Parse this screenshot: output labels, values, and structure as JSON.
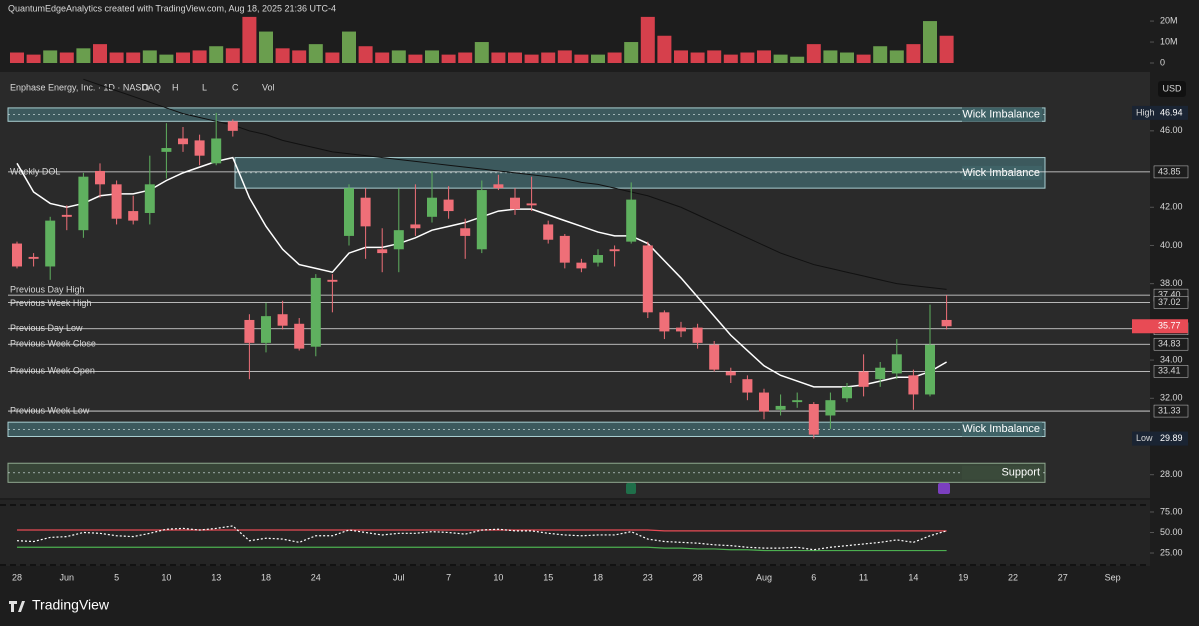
{
  "header": {
    "credit": "QuantumEdgeAnalytics created with TradingView.com, Aug 18, 2025 21:36 UTC-4",
    "currency": "USD",
    "brand": "TradingView"
  },
  "chart_data": {
    "type": "candlestick",
    "title": "Enphase Energy, Inc. · 1D · NASDAQ",
    "ohlc_labels": [
      "O",
      "H",
      "L",
      "C",
      "Vol"
    ],
    "up_color": "#5fb05f",
    "down_color": "#ef6f78",
    "open": [
      40.1,
      39.4,
      38.9,
      41.6,
      40.8,
      43.9,
      43.2,
      41.8,
      41.7,
      44.9,
      45.6,
      45.5,
      44.3,
      46.5,
      36.1,
      34.9,
      36.4,
      35.9,
      34.7,
      38.2,
      40.5,
      42.5,
      39.8,
      39.8,
      41.1,
      41.5,
      42.4,
      40.9,
      39.8,
      43.2,
      42.5,
      42.2,
      41.1,
      40.5,
      39.1,
      39.1,
      39.8,
      40.2,
      40.0,
      36.5,
      35.7,
      35.7,
      34.8,
      33.4,
      33.0,
      32.3,
      31.4,
      31.8,
      31.7,
      31.1,
      32.0,
      33.4,
      33.0,
      33.3,
      33.2,
      32.2,
      36.1
    ],
    "high": [
      40.2,
      39.6,
      41.5,
      42.1,
      43.8,
      44.3,
      43.4,
      42.6,
      44.7,
      46.4,
      46.2,
      45.8,
      46.94,
      46.6,
      36.4,
      37.0,
      37.1,
      36.2,
      38.5,
      38.5,
      43.2,
      43.0,
      40.9,
      43.0,
      43.2,
      43.9,
      43.1,
      41.4,
      43.4,
      43.7,
      43.0,
      43.6,
      41.3,
      40.6,
      39.3,
      39.8,
      40.0,
      43.3,
      40.2,
      36.6,
      36.0,
      35.9,
      35.0,
      33.6,
      33.2,
      32.5,
      32.2,
      32.3,
      31.8,
      32.3,
      32.8,
      34.3,
      33.9,
      35.1,
      33.5,
      36.9,
      37.4
    ],
    "low": [
      38.8,
      38.9,
      38.2,
      40.8,
      40.4,
      42.5,
      41.1,
      41.1,
      41.1,
      43.5,
      44.9,
      44.2,
      44.2,
      45.7,
      33.0,
      34.4,
      35.6,
      34.5,
      34.2,
      36.5,
      40.0,
      39.3,
      38.6,
      38.6,
      40.5,
      41.2,
      41.4,
      39.3,
      39.6,
      42.9,
      41.6,
      41.8,
      40.1,
      38.8,
      38.6,
      38.9,
      38.9,
      40.1,
      36.2,
      35.1,
      35.2,
      34.6,
      33.4,
      32.8,
      31.9,
      30.9,
      31.1,
      31.5,
      29.89,
      30.4,
      31.8,
      32.1,
      32.6,
      33.0,
      31.4,
      32.1,
      35.6
    ],
    "close": [
      38.9,
      39.3,
      41.3,
      41.5,
      43.6,
      43.2,
      41.4,
      41.3,
      43.2,
      45.1,
      45.3,
      44.7,
      45.6,
      46.0,
      34.9,
      36.3,
      35.8,
      34.6,
      38.3,
      38.1,
      43.0,
      41.0,
      39.6,
      40.8,
      40.9,
      42.5,
      41.8,
      40.5,
      42.9,
      43.0,
      41.9,
      42.1,
      40.3,
      39.1,
      38.8,
      39.5,
      39.7,
      42.4,
      36.5,
      35.5,
      35.5,
      34.9,
      33.5,
      33.2,
      32.3,
      31.3,
      31.6,
      31.9,
      30.1,
      31.9,
      32.6,
      32.6,
      33.6,
      34.3,
      32.2,
      34.8,
      35.77
    ],
    "ma_series": [
      {
        "color": "#ffffff",
        "values": [
          44.3,
          42.8,
          42.2,
          42.0,
          42.2,
          42.6,
          42.7,
          42.7,
          42.9,
          43.4,
          43.8,
          44.1,
          44.4,
          44.6,
          42.5,
          41.0,
          39.8,
          39.0,
          38.8,
          38.6,
          39.6,
          39.9,
          39.9,
          40.1,
          40.4,
          40.8,
          41.0,
          41.2,
          41.5,
          41.8,
          41.9,
          41.9,
          41.6,
          41.3,
          41.0,
          40.7,
          40.5,
          40.5,
          40.1,
          39.2,
          38.3,
          37.3,
          36.3,
          35.3,
          34.5,
          33.7,
          33.2,
          32.9,
          32.6,
          32.6,
          32.6,
          32.7,
          32.9,
          33.1,
          33.1,
          33.4,
          33.9
        ]
      },
      {
        "color": "#111111",
        "values": [
          null,
          null,
          null,
          null,
          48.7,
          48.4,
          48.1,
          47.8,
          47.5,
          47.2,
          46.9,
          46.7,
          46.5,
          46.3,
          46.0,
          45.8,
          45.5,
          45.3,
          45.1,
          44.9,
          44.8,
          44.7,
          44.6,
          44.5,
          44.4,
          44.3,
          44.2,
          44.1,
          44.0,
          43.9,
          43.8,
          43.7,
          43.6,
          43.5,
          43.3,
          43.2,
          43.0,
          42.8,
          42.6,
          42.3,
          42.0,
          41.6,
          41.2,
          40.8,
          40.4,
          40.0,
          39.6,
          39.3,
          39.0,
          38.8,
          38.6,
          38.4,
          38.2,
          38.0,
          37.9,
          37.8,
          37.7
        ]
      }
    ],
    "ylim": [
      26.78,
      49.08
    ],
    "yticks": [
      {
        "value": 46,
        "label": "46.00"
      },
      {
        "value": 42,
        "label": "42.00"
      },
      {
        "value": 40,
        "label": "40.00"
      },
      {
        "value": 38,
        "label": "38.00"
      },
      {
        "value": 34,
        "label": "34.00"
      },
      {
        "value": 32,
        "label": "32.00"
      },
      {
        "value": 28,
        "label": "28.00"
      }
    ],
    "xtick_labels": [
      "28",
      "Jun",
      "5",
      "10",
      "13",
      "18",
      "24",
      "Jul",
      "7",
      "10",
      "15",
      "18",
      "23",
      "28",
      "Aug",
      "6",
      "11",
      "14",
      "19",
      "22",
      "27",
      "Sep"
    ],
    "high_label": "High",
    "low_label": "Low",
    "levels": [
      {
        "name": "Weekly DOL",
        "price": {
          "value": 43.85,
          "label": "43.85"
        }
      },
      {
        "name": "Previous Day High",
        "price": {
          "value": 37.4,
          "label": "37.40"
        }
      },
      {
        "name": "Previous Week High",
        "price": {
          "value": 37.02,
          "label": "37.02"
        }
      },
      {
        "name": "Previous Day Low",
        "price": {
          "value": 35.64,
          "label": "35.64"
        }
      },
      {
        "name": "Previous Week Close",
        "price": {
          "value": 34.83,
          "label": "34.83"
        }
      },
      {
        "name": "Previous Week Open",
        "price": {
          "value": 33.41,
          "label": "33.41"
        }
      },
      {
        "name": "Previous Week Low",
        "price": {
          "value": 31.33,
          "label": "31.33"
        }
      }
    ],
    "zones": [
      {
        "label": "Wick Imbalance",
        "range": [
          46.5,
          47.2
        ]
      },
      {
        "label": "Wick Imbalance",
        "range": [
          43.0,
          44.6
        ]
      },
      {
        "label": "Wick Imbalance",
        "range": [
          30.0,
          30.75
        ]
      },
      {
        "label": "Support",
        "range": [
          27.6,
          28.6
        ]
      }
    ],
    "volume": {
      "values": [
        5,
        4,
        6,
        5,
        7,
        9,
        5,
        5,
        6,
        4,
        5,
        6,
        8,
        7,
        22,
        15,
        7,
        6,
        9,
        5,
        15,
        8,
        5,
        6,
        4,
        6,
        4,
        5,
        10,
        5,
        5,
        4,
        5,
        6,
        4,
        4,
        5,
        10,
        22,
        13,
        6,
        5,
        6,
        4,
        5,
        6,
        4,
        3,
        9,
        6,
        5,
        4,
        8,
        6,
        9,
        20,
        13
      ],
      "ylim": [
        0,
        22.9
      ],
      "yticks": [
        {
          "value": 20,
          "label": "20M"
        },
        {
          "value": 10,
          "label": "10M"
        },
        0
      ],
      "up_color": "#6a9e4e",
      "down_color": "#d6404c"
    },
    "oscillator": {
      "ylim": [
        10.4,
        83.5
      ],
      "yticks": [
        {
          "value": 75,
          "label": "75.00"
        },
        {
          "value": 50,
          "label": "50.00"
        },
        {
          "value": 25,
          "label": "25.00"
        }
      ],
      "series": [
        {
          "color": "#e84b55",
          "values": [
            53,
            53,
            53,
            53,
            53,
            53,
            53,
            53,
            53,
            53,
            53,
            53,
            53,
            53,
            53,
            53,
            53,
            53,
            53,
            53,
            53,
            53,
            53,
            53,
            53,
            53,
            53,
            53,
            53,
            53,
            53,
            53,
            53,
            53,
            53,
            53,
            53,
            53,
            53,
            52,
            52,
            52,
            52,
            52,
            52,
            52,
            52,
            52,
            52,
            52,
            52,
            52,
            52,
            52,
            52,
            52,
            52
          ]
        },
        {
          "color": "#4caf50",
          "values": [
            32,
            32,
            32,
            32,
            32,
            32,
            32,
            32,
            32,
            32,
            32,
            32,
            32,
            32,
            32,
            32,
            32,
            32,
            32,
            32,
            32,
            32,
            32,
            32,
            32,
            32,
            32,
            32,
            32,
            32,
            32,
            32,
            32,
            32,
            32,
            32,
            32,
            32,
            32,
            31,
            31,
            30,
            30,
            29,
            29,
            28,
            28,
            28,
            28,
            28,
            28,
            28,
            28,
            28,
            28,
            28,
            28
          ]
        },
        {
          "color": "#ffffff",
          "dashed": true,
          "values": [
            40,
            39,
            44,
            45,
            50,
            49,
            46,
            45,
            49,
            54,
            55,
            53,
            55,
            58,
            40,
            43,
            42,
            38,
            46,
            46,
            53,
            50,
            47,
            49,
            49,
            51,
            50,
            48,
            53,
            54,
            52,
            52,
            49,
            47,
            46,
            47,
            47,
            51,
            42,
            39,
            38,
            37,
            35,
            34,
            32,
            31,
            31,
            32,
            29,
            32,
            34,
            36,
            38,
            41,
            38,
            46,
            52
          ]
        }
      ]
    }
  }
}
